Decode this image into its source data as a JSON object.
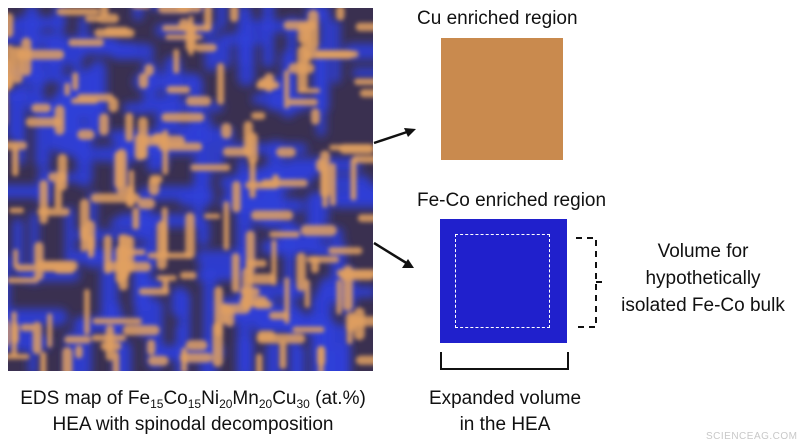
{
  "map_caption": {
    "line1_prefix": "EDS map of ",
    "elements": [
      {
        "symbol": "Fe",
        "subscript": "15"
      },
      {
        "symbol": "Co",
        "subscript": "15"
      },
      {
        "symbol": "Ni",
        "subscript": "20"
      },
      {
        "symbol": "Mn",
        "subscript": "20"
      },
      {
        "symbol": "Cu",
        "subscript": "30"
      }
    ],
    "line1_suffix": " (at.%)",
    "line2": "HEA with spinodal decomposition"
  },
  "cu_region": {
    "label": "Cu enriched region",
    "color": "#c98a4e"
  },
  "feco_region": {
    "label": "Fe-Co enriched region",
    "color": "#2020cc"
  },
  "volume_note": {
    "line1": "Volume for",
    "line2": "hypothetically",
    "line3": "isolated Fe-Co bulk"
  },
  "expanded_note": {
    "line1": "Expanded volume",
    "line2": "in the HEA"
  },
  "colors": {
    "map_blue": "#2f3fd8",
    "map_orange": "#e0a060",
    "map_dark": "#3a3050"
  },
  "watermark": "SCIENCEAG.COM"
}
